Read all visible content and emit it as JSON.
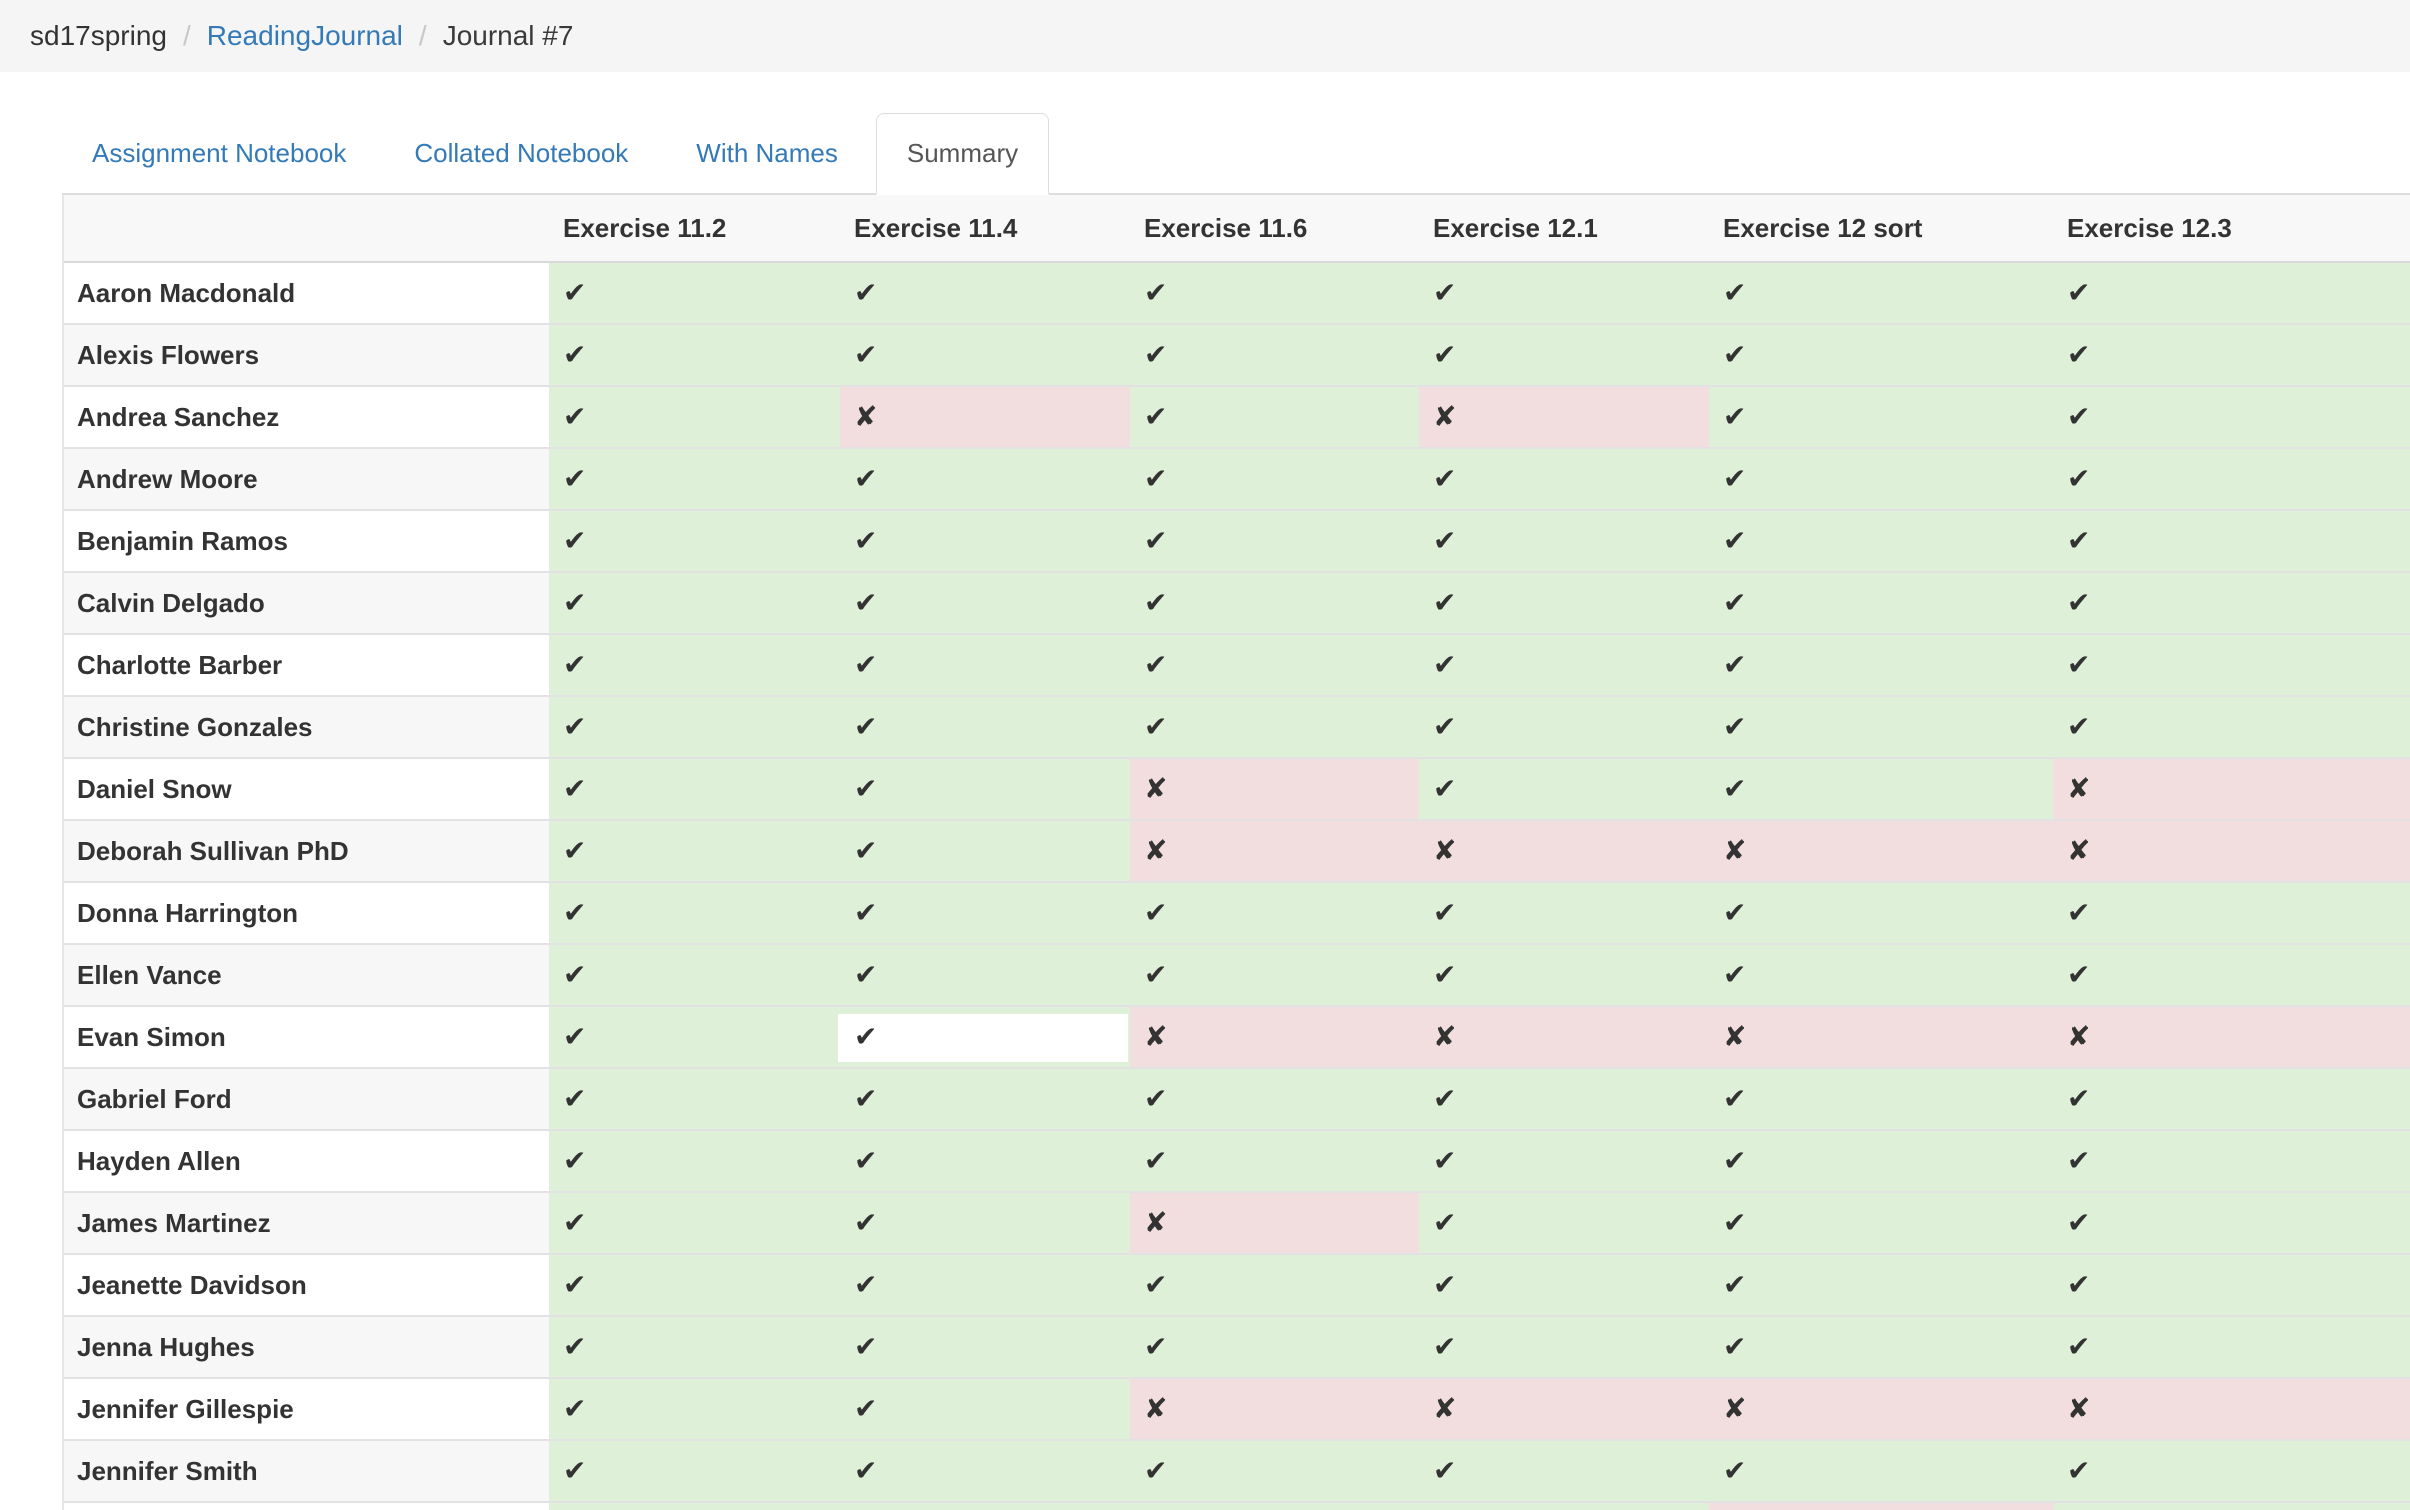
{
  "breadcrumb": {
    "separator": "/",
    "items": [
      {
        "label": "sd17spring",
        "type": "plain"
      },
      {
        "label": "ReadingJournal",
        "type": "link"
      },
      {
        "label": "Journal #7",
        "type": "current"
      }
    ]
  },
  "tabs": [
    {
      "label": "Assignment Notebook",
      "active": false
    },
    {
      "label": "Collated Notebook",
      "active": false
    },
    {
      "label": "With Names",
      "active": false
    },
    {
      "label": "Summary",
      "active": true
    }
  ],
  "icons": {
    "pass": "✔",
    "fail": "✘"
  },
  "colors": {
    "pass_bg": "#dff0d8",
    "fail_bg": "#f2dede",
    "highlight": "#ffffff",
    "accent_blue": "#337ab7"
  },
  "table": {
    "columns": [
      "Exercise 11.2",
      "Exercise 11.4",
      "Exercise 11.6",
      "Exercise 12.1",
      "Exercise 12 sort",
      "Exercise 12.3"
    ],
    "rows": [
      {
        "name": "Aaron Macdonald",
        "marks": [
          "pass",
          "pass",
          "pass",
          "pass",
          "pass",
          "pass"
        ]
      },
      {
        "name": "Alexis Flowers",
        "marks": [
          "pass",
          "pass",
          "pass",
          "pass",
          "pass",
          "pass"
        ]
      },
      {
        "name": "Andrea Sanchez",
        "marks": [
          "pass",
          "fail",
          "pass",
          "fail",
          "pass",
          "pass"
        ]
      },
      {
        "name": "Andrew Moore",
        "marks": [
          "pass",
          "pass",
          "pass",
          "pass",
          "pass",
          "pass"
        ]
      },
      {
        "name": "Benjamin Ramos",
        "marks": [
          "pass",
          "pass",
          "pass",
          "pass",
          "pass",
          "pass"
        ]
      },
      {
        "name": "Calvin Delgado",
        "marks": [
          "pass",
          "pass",
          "pass",
          "pass",
          "pass",
          "pass"
        ]
      },
      {
        "name": "Charlotte Barber",
        "marks": [
          "pass",
          "pass",
          "pass",
          "pass",
          "pass",
          "pass"
        ]
      },
      {
        "name": "Christine Gonzales",
        "marks": [
          "pass",
          "pass",
          "pass",
          "pass",
          "pass",
          "pass"
        ]
      },
      {
        "name": "Daniel Snow",
        "marks": [
          "pass",
          "pass",
          "fail",
          "pass",
          "pass",
          "fail"
        ]
      },
      {
        "name": "Deborah Sullivan PhD",
        "marks": [
          "pass",
          "pass",
          "fail",
          "fail",
          "fail",
          "fail"
        ]
      },
      {
        "name": "Donna Harrington",
        "marks": [
          "pass",
          "pass",
          "pass",
          "pass",
          "pass",
          "pass"
        ]
      },
      {
        "name": "Ellen Vance",
        "marks": [
          "pass",
          "pass",
          "pass",
          "pass",
          "pass",
          "pass"
        ]
      },
      {
        "name": "Evan Simon",
        "marks": [
          "pass",
          "pass",
          "fail",
          "fail",
          "fail",
          "fail"
        ]
      },
      {
        "name": "Gabriel Ford",
        "marks": [
          "pass",
          "pass",
          "pass",
          "pass",
          "pass",
          "pass"
        ]
      },
      {
        "name": "Hayden Allen",
        "marks": [
          "pass",
          "pass",
          "pass",
          "pass",
          "pass",
          "pass"
        ]
      },
      {
        "name": "James Martinez",
        "marks": [
          "pass",
          "pass",
          "fail",
          "pass",
          "pass",
          "pass"
        ]
      },
      {
        "name": "Jeanette Davidson",
        "marks": [
          "pass",
          "pass",
          "pass",
          "pass",
          "pass",
          "pass"
        ]
      },
      {
        "name": "Jenna Hughes",
        "marks": [
          "pass",
          "pass",
          "pass",
          "pass",
          "pass",
          "pass"
        ]
      },
      {
        "name": "Jennifer Gillespie",
        "marks": [
          "pass",
          "pass",
          "fail",
          "fail",
          "fail",
          "fail"
        ]
      },
      {
        "name": "Jennifer Smith",
        "marks": [
          "pass",
          "pass",
          "pass",
          "pass",
          "pass",
          "pass"
        ]
      }
    ],
    "partial_row": {
      "marks": [
        "pass",
        "pass",
        "pass",
        "pass",
        "fail",
        "pass"
      ]
    },
    "highlight_cell": {
      "row": 12,
      "col": 1
    }
  }
}
